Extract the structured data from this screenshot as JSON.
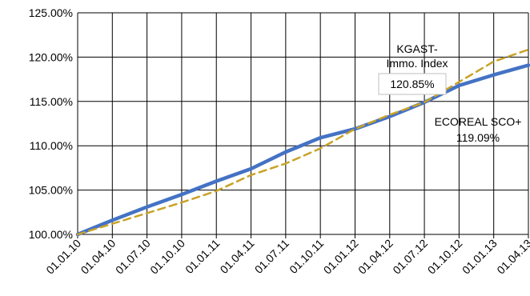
{
  "chart_data": {
    "type": "line",
    "title": "",
    "xlabel": "",
    "ylabel": "",
    "categories": [
      "01.01.10",
      "01.04.10",
      "01.07.10",
      "01.10.10",
      "01.01.11",
      "01.04.11",
      "01.07.11",
      "01.10.11",
      "01.01.12",
      "01.04.12",
      "01.07.12",
      "01.10.12",
      "01.01.13",
      "01.04.13"
    ],
    "ylim": [
      100,
      125
    ],
    "yticks": [
      "100.00%",
      "105.00%",
      "110.00%",
      "115.00%",
      "120.00%",
      "125.00%"
    ],
    "grid": true,
    "series": [
      {
        "name": "ECOREAL SCO+",
        "color": "#4472C4",
        "style": "solid",
        "values": [
          100.0,
          101.6,
          103.1,
          104.5,
          106.0,
          107.4,
          109.3,
          110.9,
          111.9,
          113.3,
          114.9,
          116.8,
          118.0,
          119.09
        ]
      },
      {
        "name": "KGAST-Immo. Index",
        "color": "#C9A227",
        "style": "dashed",
        "values": [
          100.0,
          101.2,
          102.4,
          103.6,
          104.9,
          106.7,
          108.0,
          109.7,
          111.9,
          113.5,
          114.9,
          117.2,
          119.5,
          120.85
        ]
      }
    ],
    "annotations": [
      {
        "series": "KGAST-Immo. Index",
        "line1": "KGAST-",
        "line2": "Immo. Index",
        "value": "120.85%"
      },
      {
        "series": "ECOREAL SCO+",
        "line1": "ECOREAL SCO+",
        "value": "119.09%"
      }
    ]
  }
}
